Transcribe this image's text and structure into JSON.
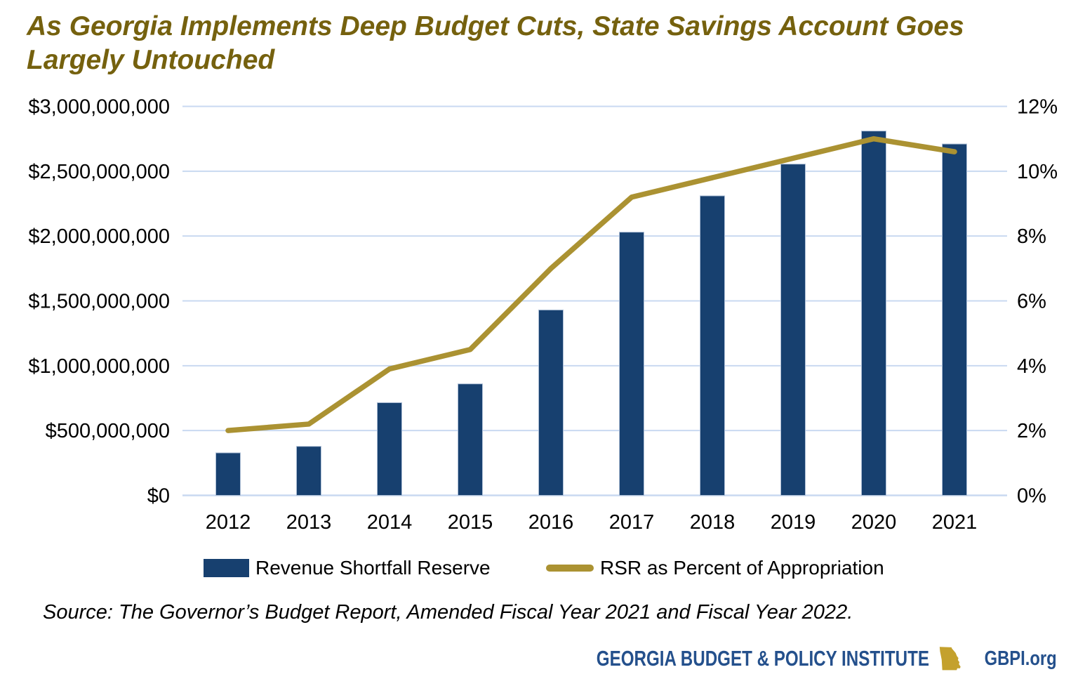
{
  "title": {
    "lines": [
      "As Georgia Implements Deep Budget Cuts, State Savings Account Goes",
      "Largely Untouched"
    ],
    "color": "#75610E"
  },
  "chart_data": {
    "type": "bar+line combo, dual y-axes",
    "categories": [
      "2012",
      "2013",
      "2014",
      "2015",
      "2016",
      "2017",
      "2018",
      "2019",
      "2020",
      "2021"
    ],
    "series": [
      {
        "name": "Revenue Shortfall Reserve",
        "type": "bar",
        "axis": "left",
        "color": "#17406F",
        "values": [
          328000000,
          378000000,
          715000000,
          860000000,
          1430000000,
          2030000000,
          2310000000,
          2555000000,
          2810000000,
          2710000000
        ]
      },
      {
        "name": "RSR as Percent of Appropriation",
        "type": "line",
        "axis": "right",
        "color": "#AB9232",
        "values": [
          2.0,
          2.2,
          3.9,
          4.5,
          7.0,
          9.2,
          9.8,
          10.4,
          11.0,
          10.6
        ]
      }
    ],
    "left_axis": {
      "min": 0,
      "max": 3000000000,
      "tick_labels": [
        "$0",
        "$500,000,000",
        "$1,000,000,000",
        "$1,500,000,000",
        "$2,000,000,000",
        "$2,500,000,000",
        "$3,000,000,000"
      ]
    },
    "right_axis": {
      "min": 0,
      "max": 12,
      "tick_labels": [
        "0%",
        "2%",
        "4%",
        "6%",
        "8%",
        "10%",
        "12%"
      ]
    },
    "gridlines": true,
    "gridline_color": "#C9D9F1",
    "legend_position": "bottom",
    "tick_label_color": "#000000"
  },
  "source_note": "Source: The Governor’s Budget Report, Amended Fiscal Year 2021 and Fiscal Year 2022.",
  "footer": {
    "org": "GEORGIA BUDGET & POLICY INSTITUTE",
    "site": "GBPI.org",
    "text_color": "#24508C",
    "icon": "georgia-state-icon",
    "icon_color": "#C4A12D"
  }
}
